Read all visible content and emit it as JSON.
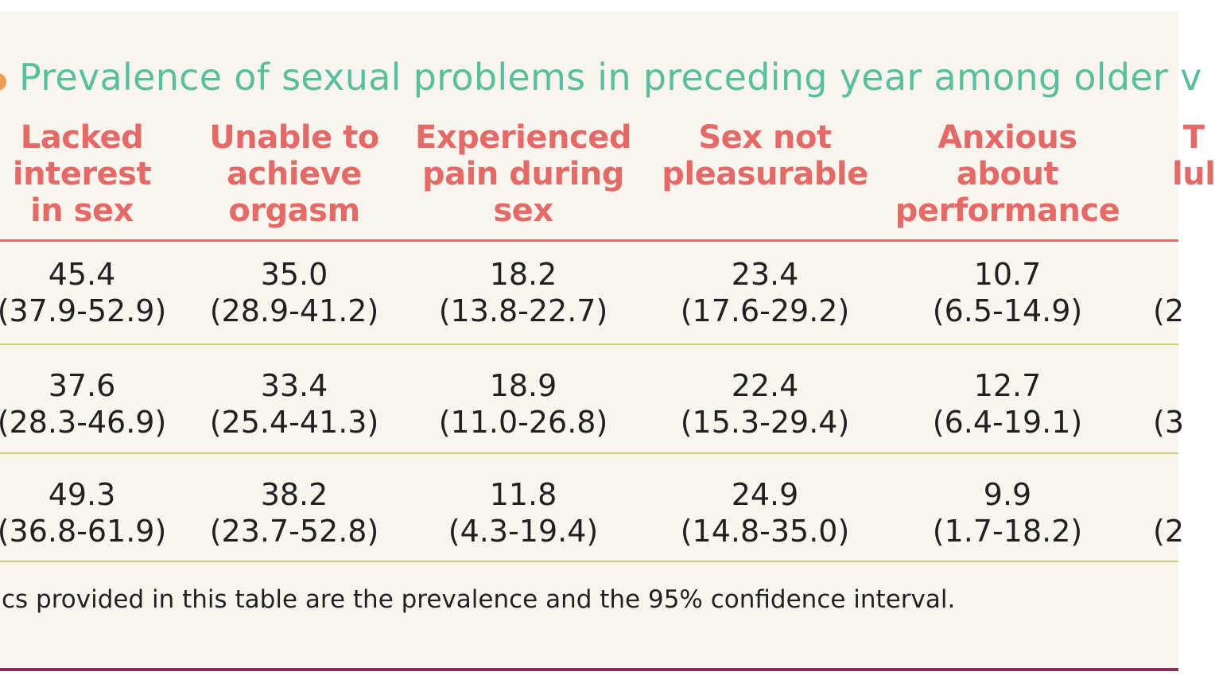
{
  "title": "Prevalence of sexual problems in preceding year among older v",
  "columns": [
    "Lacked\ninterest\nin sex",
    "Unable to\nachieve\norgasm",
    "Experienced\npain during\nsex",
    "Sex not\npleasurable",
    "Anxious\nabout\nperformance",
    "T\nlul"
  ],
  "rows": [
    {
      "cells": [
        {
          "value": "45.4",
          "ci": "(37.9-52.9)"
        },
        {
          "value": "35.0",
          "ci": "(28.9-41.2)"
        },
        {
          "value": "18.2",
          "ci": "(13.8-22.7)"
        },
        {
          "value": "23.4",
          "ci": "(17.6-29.2)"
        },
        {
          "value": "10.7",
          "ci": "(6.5-14.9)"
        },
        {
          "value": "",
          "ci": "(2"
        }
      ]
    },
    {
      "cells": [
        {
          "value": "37.6",
          "ci": "(28.3-46.9)"
        },
        {
          "value": "33.4",
          "ci": "(25.4-41.3)"
        },
        {
          "value": "18.9",
          "ci": "(11.0-26.8)"
        },
        {
          "value": "22.4",
          "ci": "(15.3-29.4)"
        },
        {
          "value": "12.7",
          "ci": "(6.4-19.1)"
        },
        {
          "value": "",
          "ci": "(3"
        }
      ]
    },
    {
      "cells": [
        {
          "value": "49.3",
          "ci": "(36.8-61.9)"
        },
        {
          "value": "38.2",
          "ci": "(23.7-52.8)"
        },
        {
          "value": "11.8",
          "ci": "(4.3-19.4)"
        },
        {
          "value": "24.9",
          "ci": "(14.8-35.0)"
        },
        {
          "value": "9.9",
          "ci": "(1.7-18.2)"
        },
        {
          "value": "",
          "ci": "(2"
        }
      ]
    }
  ],
  "footnote": "cs provided in this table are the prevalence and the 95% confidence interval.",
  "colors": {
    "title": "#58bf9c",
    "header": "#e46a67",
    "row_rule": "#c5d27a",
    "background": "#f9f5ee",
    "bottom_rule": "#8a2f57",
    "title_dot": "#f29a52"
  }
}
